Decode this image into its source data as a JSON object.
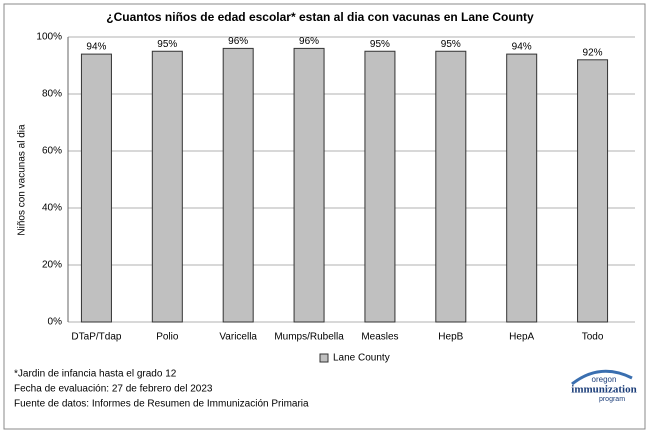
{
  "chart_data": {
    "type": "bar",
    "title": "¿Cuantos niños de edad escolar* estan al dia con vacunas en Lane County",
    "y_label": "Niños con vacunas al dia",
    "categories": [
      "DTaP/Tdap",
      "Polio",
      "Varicella",
      "Mumps/Rubella",
      "Measles",
      "HepB",
      "HepA",
      "Todo"
    ],
    "series": [
      {
        "name": "Lane County",
        "color": "#c0c0c0",
        "values": [
          94,
          95,
          96,
          96,
          95,
          95,
          94,
          92
        ],
        "value_labels": [
          "94%",
          "95%",
          "96%",
          "96%",
          "95%",
          "95%",
          "94%",
          "92%"
        ]
      }
    ],
    "ylim": [
      0,
      100
    ],
    "yticks": [
      {
        "value": 0,
        "label": "0%"
      },
      {
        "value": 20,
        "label": "20%"
      },
      {
        "value": 40,
        "label": "40%"
      },
      {
        "value": 60,
        "label": "60%"
      },
      {
        "value": 80,
        "label": "80%"
      },
      {
        "value": 100,
        "label": "100%"
      }
    ],
    "grid": true
  },
  "notes": [
    "*Jardin de infancia hasta el grado 12",
    "Fecha de evaluación: 27 de febrero del 2023",
    "Fuente de datos: Informes de Resumen de Immunización Primaria"
  ],
  "logo": {
    "top": "oregon",
    "middle": "immunization",
    "bottom": "program"
  }
}
